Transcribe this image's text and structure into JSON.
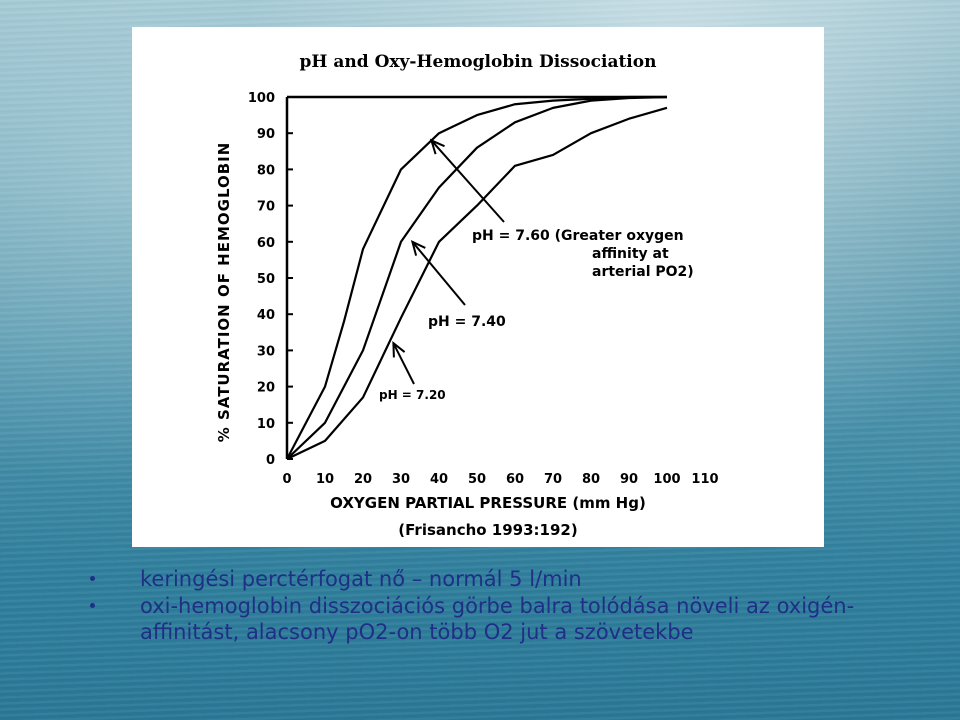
{
  "colors": {
    "text": "#1f2f86",
    "figure_bg": "#ffffff",
    "ink": "#000000"
  },
  "chart_data": {
    "type": "line",
    "title": "pH and Oxy-Hemoglobin Dissociation",
    "xlabel": "OXYGEN PARTIAL PRESSURE (mm Hg)",
    "ylabel": "% SATURATION OF HEMOGLOBIN",
    "source": "(Frisancho 1993:192)",
    "xlim": [
      0,
      110
    ],
    "ylim": [
      0,
      100
    ],
    "x_ticks": [
      "0",
      "10",
      "20",
      "30",
      "40",
      "50",
      "60",
      "70",
      "80",
      "90",
      "100",
      "110"
    ],
    "y_ticks": [
      "0",
      "10",
      "20",
      "30",
      "40",
      "50",
      "60",
      "70",
      "80",
      "90",
      "100"
    ],
    "grid": false,
    "series": [
      {
        "name": "pH = 7.60",
        "x": [
          0,
          5,
          10,
          15,
          20,
          30,
          40,
          50,
          60,
          70,
          80,
          90,
          100
        ],
        "y": [
          0,
          10,
          20,
          38,
          58,
          80,
          90,
          95,
          98,
          99,
          99.5,
          100,
          100
        ]
      },
      {
        "name": "pH = 7.40",
        "x": [
          0,
          10,
          20,
          30,
          40,
          50,
          60,
          70,
          80,
          90,
          100
        ],
        "y": [
          0,
          10,
          30,
          60,
          75,
          86,
          93,
          97,
          99,
          99.7,
          100
        ]
      },
      {
        "name": "pH = 7.20",
        "x": [
          0,
          10,
          20,
          30,
          40,
          50,
          60,
          70,
          80,
          90,
          100
        ],
        "y": [
          0,
          5,
          17,
          39,
          60,
          70,
          81,
          84,
          90,
          94,
          97
        ]
      }
    ],
    "annotations": [
      {
        "lines": [
          "pH  =  7.60 (Greater oxygen",
          "affinity at",
          "arterial PO2)"
        ],
        "points_to": {
          "x": 38,
          "y": 88
        }
      },
      {
        "lines": [
          "pH  =  7.40"
        ],
        "points_to": {
          "x": 33,
          "y": 60
        }
      },
      {
        "lines": [
          "pH = 7.20"
        ],
        "points_to": {
          "x": 28,
          "y": 32
        }
      }
    ]
  },
  "bullets": [
    "keringési perctérfogat nő – normál 5 l/min",
    "oxi-hemoglobin disszociációs görbe balra tolódása növeli az oxigén-affinitást, alacsony pO2-on több O2 jut a szövetekbe"
  ]
}
